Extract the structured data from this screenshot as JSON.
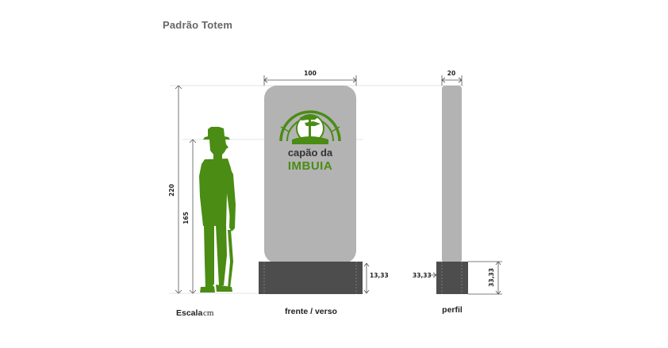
{
  "title": "Padrão Totem",
  "colors": {
    "brand_green": "#4a8c14",
    "totem_gray": "#b3b3b3",
    "base_dark": "#4d4d4d",
    "line": "#555555"
  },
  "dimensions": {
    "width_front": "100",
    "width_profile": "20",
    "height_total": "220",
    "height_person": "165",
    "base_height_front": "13,33",
    "base_overhang_left": "33,33",
    "base_height_right": "33,33"
  },
  "captions": {
    "scale_word": "Escala",
    "scale_unit": "cm",
    "front_view": "frente / verso",
    "profile_view": "perfil"
  },
  "logo": {
    "line1": "capão da",
    "line2": "IMBUIA",
    "icon": "tree-in-sun-icon"
  },
  "figure_icon": "person-with-hat-and-cane-icon"
}
